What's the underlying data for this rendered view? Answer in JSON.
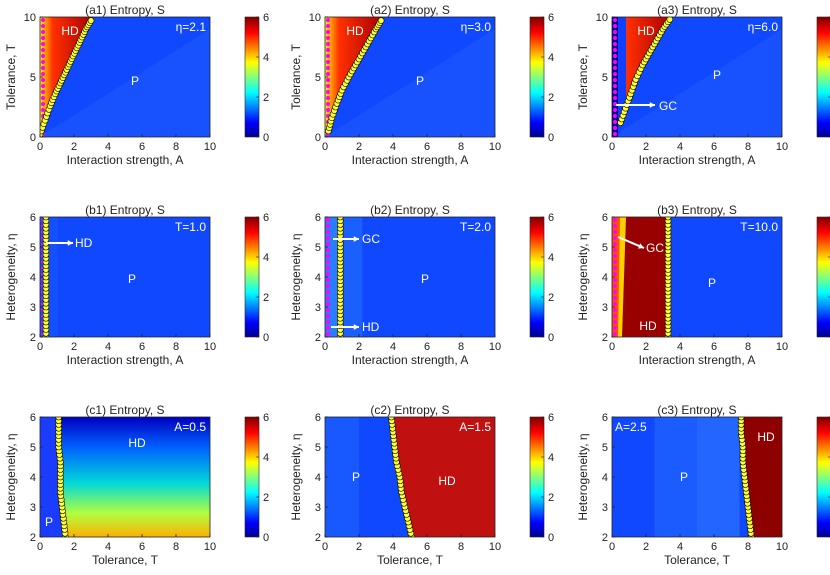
{
  "figure": {
    "panels": [
      {
        "id": "a1",
        "title": "(a1) Entropy, S",
        "xlabel": "Interaction strength, A",
        "ylabel": "Tolerance, T",
        "param": "η=2.1",
        "param_pos": "top-right",
        "xticks": [
          "0",
          "2",
          "4",
          "6",
          "8",
          "10"
        ],
        "yticks": [
          "0",
          "5",
          "10"
        ],
        "regions": [
          "HD",
          "P"
        ]
      },
      {
        "id": "a2",
        "title": "(a2) Entropy, S",
        "xlabel": "Interaction strength, A",
        "ylabel": "Tolerance, T",
        "param": "η=3.0",
        "param_pos": "top-right",
        "xticks": [
          "0",
          "2",
          "4",
          "6",
          "8",
          "10"
        ],
        "yticks": [
          "0",
          "5",
          "10"
        ],
        "regions": [
          "HD",
          "P"
        ]
      },
      {
        "id": "a3",
        "title": "(a3) Entropy, S",
        "xlabel": "Interaction strength, A",
        "ylabel": "Tolerance, T",
        "param": "η=6.0",
        "param_pos": "top-right",
        "xticks": [
          "0",
          "2",
          "4",
          "6",
          "8",
          "10"
        ],
        "yticks": [
          "0",
          "5",
          "10"
        ],
        "regions": [
          "HD",
          "P",
          "GC"
        ]
      },
      {
        "id": "b1",
        "title": "(b1) Entropy, S",
        "xlabel": "Interaction strength, A",
        "ylabel": "Heterogeneity, η",
        "param": "T=1.0",
        "param_pos": "top-right",
        "xticks": [
          "0",
          "2",
          "4",
          "6",
          "8",
          "10"
        ],
        "yticks": [
          "2",
          "3",
          "4",
          "5",
          "6"
        ],
        "regions": [
          "HD",
          "P"
        ]
      },
      {
        "id": "b2",
        "title": "(b2) Entropy, S",
        "xlabel": "Interaction strength, A",
        "ylabel": "Heterogeneity, η",
        "param": "T=2.0",
        "param_pos": "top-right",
        "xticks": [
          "0",
          "2",
          "4",
          "6",
          "8",
          "10"
        ],
        "yticks": [
          "2",
          "3",
          "4",
          "5",
          "6"
        ],
        "regions": [
          "GC",
          "P",
          "HD"
        ]
      },
      {
        "id": "b3",
        "title": "(b3) Entropy, S",
        "xlabel": "Interaction strength, A",
        "ylabel": "Heterogeneity, η",
        "param": "T=10.0",
        "param_pos": "top-right",
        "xticks": [
          "0",
          "2",
          "4",
          "6",
          "8",
          "10"
        ],
        "yticks": [
          "2",
          "3",
          "4",
          "5",
          "6"
        ],
        "regions": [
          "GC",
          "P",
          "HD"
        ]
      },
      {
        "id": "c1",
        "title": "(c1) Entropy, S",
        "xlabel": "Tolerance, T",
        "ylabel": "Heterogeneity, η",
        "param": "A=0.5",
        "param_pos": "top-right",
        "xticks": [
          "0",
          "2",
          "4",
          "6",
          "8",
          "10"
        ],
        "yticks": [
          "2",
          "3",
          "4",
          "5",
          "6"
        ],
        "regions": [
          "HD",
          "P"
        ]
      },
      {
        "id": "c2",
        "title": "(c2) Entropy, S",
        "xlabel": "Tolerance, T",
        "ylabel": "Heterogeneity, η",
        "param": "A=1.5",
        "param_pos": "top-right",
        "xticks": [
          "0",
          "2",
          "4",
          "6",
          "8",
          "10"
        ],
        "yticks": [
          "2",
          "3",
          "4",
          "5",
          "6"
        ],
        "regions": [
          "P",
          "HD"
        ]
      },
      {
        "id": "c3",
        "title": "(c3) Entropy, S",
        "xlabel": "Tolerance, T",
        "ylabel": "Heterogeneity, η",
        "param": "A=2.5",
        "param_pos": "top-left",
        "xticks": [
          "0",
          "2",
          "4",
          "6",
          "8",
          "10"
        ],
        "yticks": [
          "2",
          "3",
          "4",
          "5",
          "6"
        ],
        "regions": [
          "P",
          "HD"
        ]
      }
    ],
    "colorbar": {
      "label_ticks": [
        "0",
        "2",
        "4",
        "6"
      ],
      "range": [
        0,
        6
      ],
      "colormap": "jet"
    }
  },
  "chart_data": [
    {
      "type": "heatmap",
      "panel": "a1",
      "title": "(a1) Entropy, S",
      "xlabel": "Interaction strength, A",
      "ylabel": "Tolerance, T",
      "xlim": [
        0,
        10
      ],
      "ylim": [
        0,
        10
      ],
      "colorbar_range": [
        0,
        6
      ],
      "annotation": "η=2.1",
      "boundary": {
        "x": [
          0,
          0.3,
          0.6,
          0.9,
          1.2,
          1.5,
          1.8,
          2.1,
          2.4,
          2.7,
          3.0
        ],
        "y": [
          0.2,
          1.4,
          2.6,
          3.6,
          4.5,
          5.4,
          6.3,
          7.2,
          8.1,
          9.0,
          9.7
        ]
      },
      "hd_entropy": 5.5,
      "p_entropy": 0.5
    },
    {
      "type": "heatmap",
      "panel": "a2",
      "title": "(a2) Entropy, S",
      "xlabel": "Interaction strength, A",
      "ylabel": "Tolerance, T",
      "xlim": [
        0,
        10
      ],
      "ylim": [
        0,
        10
      ],
      "colorbar_range": [
        0,
        6
      ],
      "annotation": "η=3.0",
      "boundary": {
        "x": [
          0.2,
          0.4,
          0.7,
          1.0,
          1.4,
          1.8,
          2.2,
          2.6,
          3.0,
          3.3
        ],
        "y": [
          0.5,
          1.6,
          2.8,
          3.9,
          5.0,
          6.0,
          7.0,
          8.0,
          9.0,
          9.7
        ]
      },
      "hd_entropy": 5.5,
      "p_entropy": 0.5
    },
    {
      "type": "heatmap",
      "panel": "a3",
      "title": "(a3) Entropy, S",
      "xlabel": "Interaction strength, A",
      "ylabel": "Tolerance, T",
      "xlim": [
        0,
        10
      ],
      "ylim": [
        0,
        10
      ],
      "colorbar_range": [
        0,
        6
      ],
      "annotation": "η=6.0",
      "boundary": {
        "x": [
          0.5,
          0.8,
          1.1,
          1.4,
          1.8,
          2.2,
          2.6,
          3.0,
          3.4
        ],
        "y": [
          1.2,
          2.4,
          3.6,
          4.8,
          6.0,
          7.0,
          8.0,
          9.0,
          9.8
        ]
      },
      "hd_entropy": 5.8,
      "p_entropy": 0.5,
      "gc_label": "GC"
    },
    {
      "type": "heatmap",
      "panel": "b1",
      "title": "(b1) Entropy, S",
      "xlabel": "Interaction strength, A",
      "ylabel": "Heterogeneity, η",
      "xlim": [
        0,
        10
      ],
      "ylim": [
        2,
        6
      ],
      "colorbar_range": [
        0,
        6
      ],
      "annotation": "T=1.0",
      "boundary": {
        "x": [
          0.35,
          0.35,
          0.35,
          0.35,
          0.35,
          0.35,
          0.35,
          0.35,
          0.35
        ],
        "y": [
          2.0,
          2.5,
          3.0,
          3.5,
          4.0,
          4.5,
          5.0,
          5.5,
          6.0
        ]
      },
      "hd_entropy": 0.6,
      "p_entropy": 0.5
    },
    {
      "type": "heatmap",
      "panel": "b2",
      "title": "(b2) Entropy, S",
      "xlabel": "Interaction strength, A",
      "ylabel": "Heterogeneity, η",
      "xlim": [
        0,
        10
      ],
      "ylim": [
        2,
        6
      ],
      "colorbar_range": [
        0,
        6
      ],
      "annotation": "T=2.0",
      "boundary": {
        "x": [
          0.9,
          0.9,
          0.9,
          0.9,
          0.9,
          0.9,
          0.9,
          0.9,
          0.9
        ],
        "y": [
          2.0,
          2.5,
          3.0,
          3.5,
          4.0,
          4.5,
          5.0,
          5.5,
          6.0
        ]
      },
      "hd_entropy": 1.0,
      "p_entropy": 0.5
    },
    {
      "type": "heatmap",
      "panel": "b3",
      "title": "(b3) Entropy, S",
      "xlabel": "Interaction strength, A",
      "ylabel": "Heterogeneity, η",
      "xlim": [
        0,
        10
      ],
      "ylim": [
        2,
        6
      ],
      "colorbar_range": [
        0,
        6
      ],
      "annotation": "T=10.0",
      "boundary": {
        "x": [
          3.3,
          3.3,
          3.3,
          3.3,
          3.3,
          3.3,
          3.3,
          3.3,
          3.3
        ],
        "y": [
          2.0,
          2.5,
          3.0,
          3.5,
          4.0,
          4.5,
          5.0,
          5.5,
          6.0
        ]
      },
      "hd_entropy": 5.8,
      "p_entropy": 0.5
    },
    {
      "type": "heatmap",
      "panel": "c1",
      "title": "(c1) Entropy, S",
      "xlabel": "Tolerance, T",
      "ylabel": "Heterogeneity, η",
      "xlim": [
        0,
        10
      ],
      "ylim": [
        2,
        6
      ],
      "colorbar_range": [
        0,
        6
      ],
      "annotation": "A=0.5",
      "boundary": {
        "x": [
          1.5,
          1.4,
          1.3,
          1.2,
          1.2,
          1.2,
          1.1,
          1.1,
          1.1
        ],
        "y": [
          2.0,
          2.5,
          3.0,
          3.5,
          4.0,
          4.5,
          5.0,
          5.5,
          6.0
        ]
      },
      "hd_entropy_range": [
        0.5,
        4.5
      ],
      "p_entropy": 1.0
    },
    {
      "type": "heatmap",
      "panel": "c2",
      "title": "(c2) Entropy, S",
      "xlabel": "Tolerance, T",
      "ylabel": "Heterogeneity, η",
      "xlim": [
        0,
        10
      ],
      "ylim": [
        2,
        6
      ],
      "colorbar_range": [
        0,
        6
      ],
      "annotation": "A=1.5",
      "boundary": {
        "x": [
          5.1,
          4.9,
          4.7,
          4.5,
          4.4,
          4.2,
          4.1,
          4.0,
          3.9
        ],
        "y": [
          2.0,
          2.5,
          3.0,
          3.5,
          4.0,
          4.5,
          5.0,
          5.5,
          6.0
        ]
      },
      "hd_entropy": 5.6,
      "p_entropy": 0.8
    },
    {
      "type": "heatmap",
      "panel": "c3",
      "title": "(c3) Entropy, S",
      "xlabel": "Tolerance, T",
      "ylabel": "Heterogeneity, η",
      "xlim": [
        0,
        10
      ],
      "ylim": [
        2,
        6
      ],
      "colorbar_range": [
        0,
        6
      ],
      "annotation": "A=2.5",
      "boundary": {
        "x": [
          8.2,
          8.1,
          8.0,
          7.9,
          7.8,
          7.7,
          7.7,
          7.6,
          7.6
        ],
        "y": [
          2.0,
          2.5,
          3.0,
          3.5,
          4.0,
          4.5,
          5.0,
          5.5,
          6.0
        ]
      },
      "hd_entropy": 5.8,
      "p_entropy": 0.9
    }
  ]
}
